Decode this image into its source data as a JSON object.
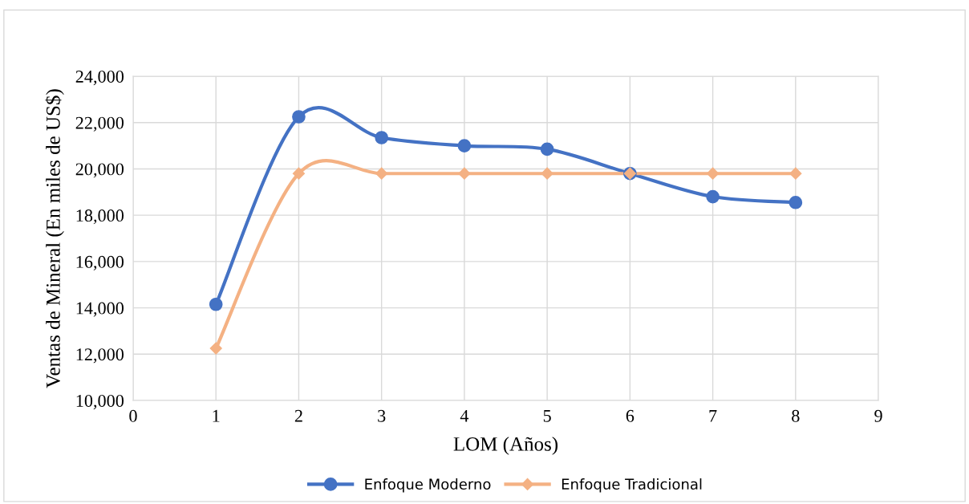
{
  "chart_data": {
    "type": "line",
    "xlabel": "LOM (Años)",
    "ylabel": "Ventas de Mineral (En miles de US$)",
    "x": [
      1,
      2,
      3,
      4,
      5,
      6,
      7,
      8
    ],
    "series": [
      {
        "name": "Enfoque Moderno",
        "color": "#4472c4",
        "marker": "circle",
        "values": [
          14150,
          22250,
          21350,
          21000,
          20850,
          19800,
          18800,
          18550
        ]
      },
      {
        "name": "Enfoque Tradicional",
        "color": "#f4b183",
        "marker": "diamond",
        "values": [
          12250,
          19800,
          19800,
          19800,
          19800,
          19800,
          19800,
          19800
        ]
      }
    ],
    "xlim": [
      0,
      9
    ],
    "xticks": [
      0,
      1,
      2,
      3,
      4,
      5,
      6,
      7,
      8,
      9
    ],
    "ylim": [
      10000,
      24000
    ],
    "yticks": [
      {
        "value": 10000,
        "label": "10,000"
      },
      {
        "value": 12000,
        "label": "12,000"
      },
      {
        "value": 14000,
        "label": "14,000"
      },
      {
        "value": 16000,
        "label": "16,000"
      },
      {
        "value": 18000,
        "label": "18,000"
      },
      {
        "value": 20000,
        "label": "20,000"
      },
      {
        "value": 22000,
        "label": "22,000"
      },
      {
        "value": 24000,
        "label": "24,000"
      }
    ],
    "grid": true,
    "legend": "bottom",
    "line_style": "solid"
  }
}
